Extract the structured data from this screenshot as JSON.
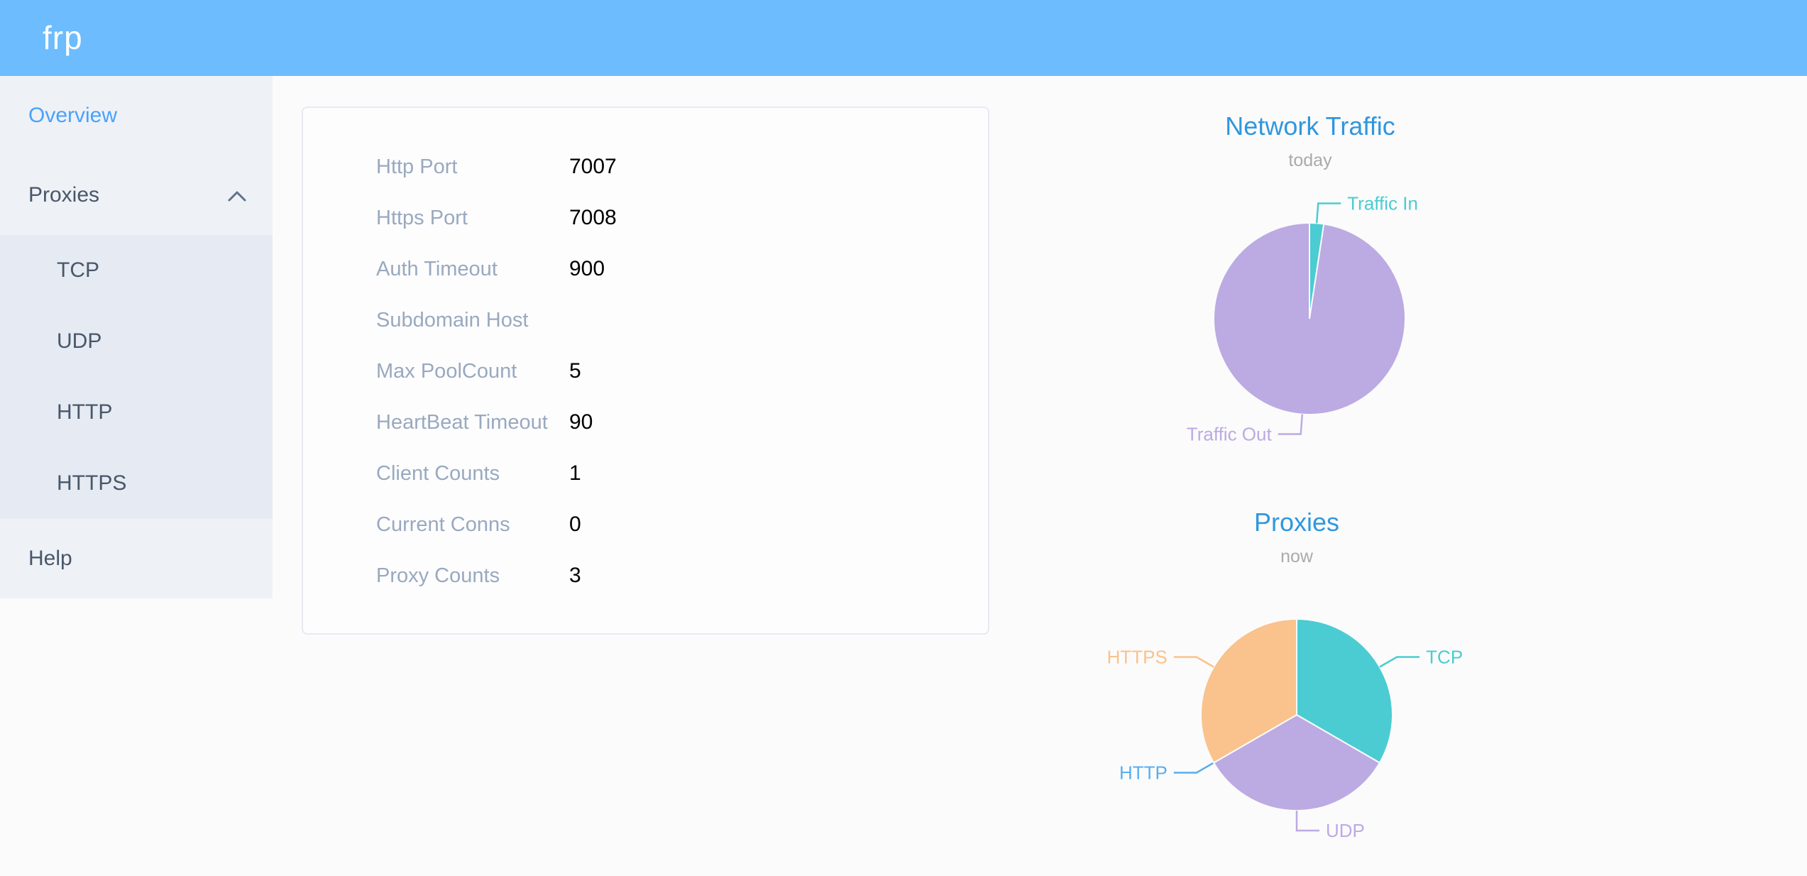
{
  "header": {
    "logo": "frp",
    "bg_color": "#6dbcfd"
  },
  "sidebar": {
    "items": [
      {
        "label": "Overview",
        "active": true
      },
      {
        "label": "Proxies",
        "expanded": true
      },
      {
        "label": "Help",
        "active": false
      }
    ],
    "subitems": [
      "TCP",
      "UDP",
      "HTTP",
      "HTTPS"
    ],
    "active_color": "#4aa2fb",
    "text_color": "#48576a"
  },
  "server_info": {
    "rows": [
      {
        "label": "Http Port",
        "value": "7007"
      },
      {
        "label": "Https Port",
        "value": "7008"
      },
      {
        "label": "Auth Timeout",
        "value": "900"
      },
      {
        "label": "Subdomain Host",
        "value": ""
      },
      {
        "label": "Max PoolCount",
        "value": "5"
      },
      {
        "label": "HeartBeat Timeout",
        "value": "90"
      },
      {
        "label": "Client Counts",
        "value": "1"
      },
      {
        "label": "Current Conns",
        "value": "0"
      },
      {
        "label": "Proxy Counts",
        "value": "3"
      }
    ]
  },
  "chart_data": [
    {
      "type": "pie",
      "title": "Network Traffic",
      "subtitle": "today",
      "unit": "percent (estimated from slice angles, raw byte values not shown)",
      "legend_position": "callout-labels",
      "series": [
        {
          "name": "Traffic In",
          "value": 2.4,
          "color": "#4accd2"
        },
        {
          "name": "Traffic Out",
          "value": 97.6,
          "color": "#bcaae3"
        }
      ]
    },
    {
      "type": "pie",
      "title": "Proxies",
      "subtitle": "now",
      "unit": "proxy count",
      "legend_position": "callout-labels",
      "series": [
        {
          "name": "TCP",
          "value": 1,
          "color": "#4accd2"
        },
        {
          "name": "UDP",
          "value": 1,
          "color": "#bcaae3"
        },
        {
          "name": "HTTP",
          "value": 0,
          "color": "#58aef0"
        },
        {
          "name": "HTTPS",
          "value": 1,
          "color": "#fac28c"
        }
      ]
    }
  ]
}
